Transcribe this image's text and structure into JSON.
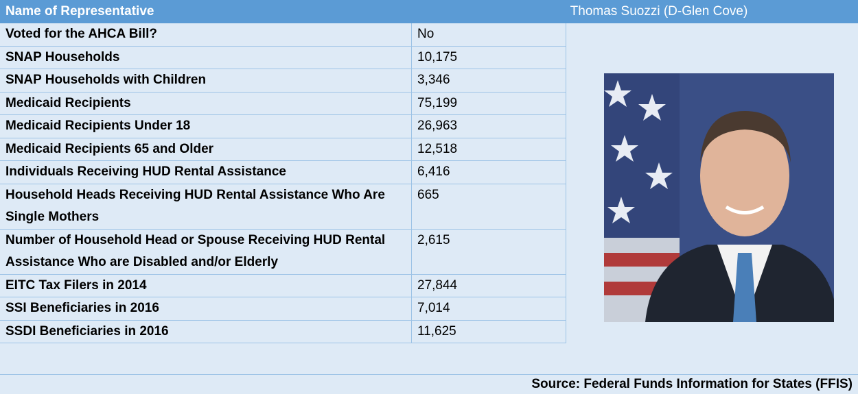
{
  "header": {
    "label": "Name of Representative",
    "representative": "Thomas Suozzi (D-Glen Cove)"
  },
  "rows": [
    [
      "Voted for the AHCA Bill?",
      "No"
    ],
    [
      "SNAP Households",
      "10,175"
    ],
    [
      "SNAP Households with Children",
      "3,346"
    ],
    [
      "Medicaid Recipients",
      "75,199"
    ],
    [
      "Medicaid Recipients Under 18",
      "26,963"
    ],
    [
      "Medicaid Recipients 65 and Older",
      "12,518"
    ],
    [
      "Individuals Receiving HUD Rental Assistance",
      "6,416"
    ],
    [
      "Household Heads Receiving HUD Rental Assistance Who Are Single Mothers",
      "665"
    ],
    [
      "Number of Household Head or Spouse Receiving HUD Rental Assistance Who are Disabled and/or Elderly",
      "2,615"
    ],
    [
      "EITC Tax Filers in 2014",
      "27,844"
    ],
    [
      "SSI Beneficiaries in 2016",
      "7,014"
    ],
    [
      "SSDI Beneficiaries in 2016",
      "11,625"
    ]
  ],
  "source": "Source: Federal Funds Information for States (FFIS)"
}
